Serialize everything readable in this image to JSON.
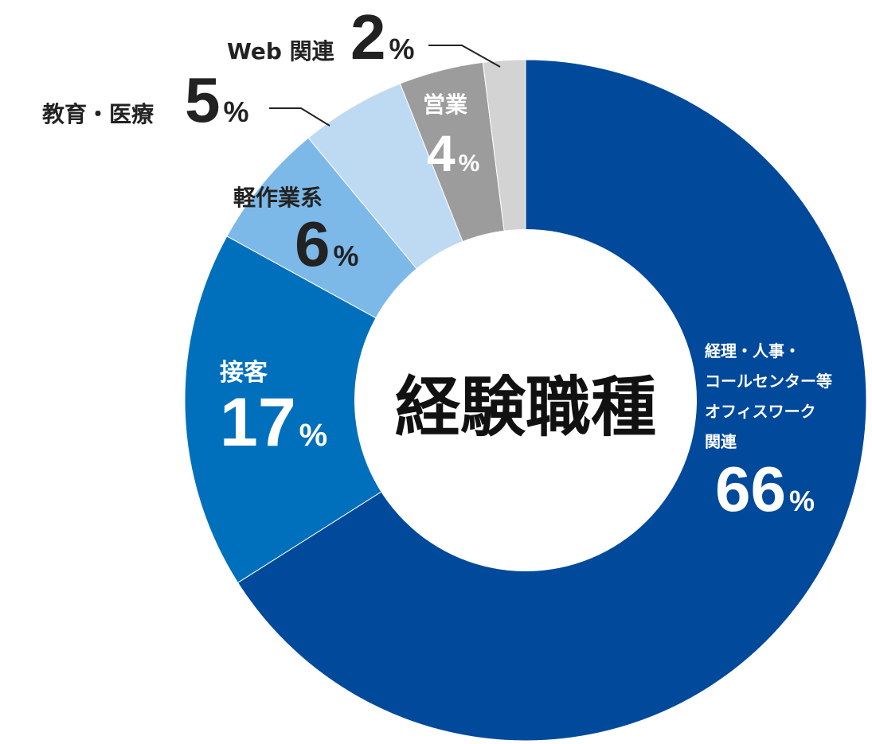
{
  "chart_data": {
    "type": "donut",
    "title": "経験職種",
    "unit": "%",
    "start_angle": "12 o'clock, clockwise",
    "slices": [
      {
        "name_lines": [
          "経理・人事・",
          "コールセンター等",
          "オフィスワーク",
          "関連"
        ],
        "value": 66,
        "color": "#00499b"
      },
      {
        "name_lines": [
          "接客"
        ],
        "value": 17,
        "color": "#0070bd"
      },
      {
        "name_lines": [
          "軽作業系"
        ],
        "value": 6,
        "color": "#7db9e8"
      },
      {
        "name_lines": [
          "教育・医療"
        ],
        "value": 5,
        "color": "#bedaf3"
      },
      {
        "name_lines": [
          "営業"
        ],
        "value": 4,
        "color": "#9c9c9c"
      },
      {
        "name_lines": [
          "Web 関連"
        ],
        "value": 2,
        "color": "#d3d3d3"
      }
    ]
  }
}
